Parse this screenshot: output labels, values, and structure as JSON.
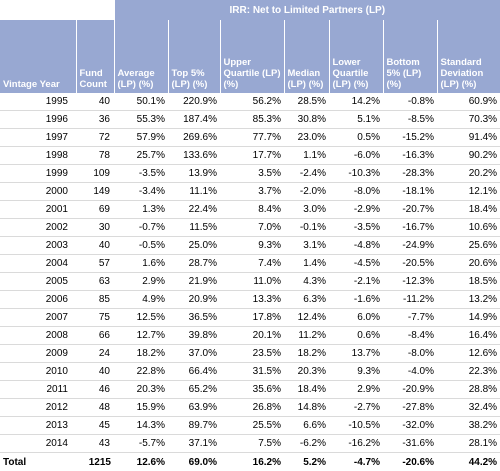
{
  "group_title": "IRR: Net to Limited Partners (LP)",
  "headers": {
    "vintage_year": "Vintage Year",
    "fund_count": "Fund Count",
    "average": "Average (LP) (%)",
    "top5": "Top 5% (LP) (%)",
    "upper_quartile": "Upper Quartile (LP) (%)",
    "median": "Median (LP) (%)",
    "lower_quartile": "Lower Quartile (LP) (%)",
    "bottom5": "Bottom 5% (LP) (%)",
    "std_dev": "Standard Deviation (LP) (%)"
  },
  "rows": [
    [
      "1995",
      "40",
      "50.1%",
      "220.9%",
      "56.2%",
      "28.5%",
      "14.2%",
      "-0.8%",
      "60.9%"
    ],
    [
      "1996",
      "36",
      "55.3%",
      "187.4%",
      "85.3%",
      "30.8%",
      "5.1%",
      "-8.5%",
      "70.3%"
    ],
    [
      "1997",
      "72",
      "57.9%",
      "269.6%",
      "77.7%",
      "23.0%",
      "0.5%",
      "-15.2%",
      "91.4%"
    ],
    [
      "1998",
      "78",
      "25.7%",
      "133.6%",
      "17.7%",
      "1.1%",
      "-6.0%",
      "-16.3%",
      "90.2%"
    ],
    [
      "1999",
      "109",
      "-3.5%",
      "13.9%",
      "3.5%",
      "-2.4%",
      "-10.3%",
      "-28.3%",
      "20.2%"
    ],
    [
      "2000",
      "149",
      "-3.4%",
      "11.1%",
      "3.7%",
      "-2.0%",
      "-8.0%",
      "-18.1%",
      "12.1%"
    ],
    [
      "2001",
      "69",
      "1.3%",
      "22.4%",
      "8.4%",
      "3.0%",
      "-2.9%",
      "-20.7%",
      "18.4%"
    ],
    [
      "2002",
      "30",
      "-0.7%",
      "11.5%",
      "7.0%",
      "-0.1%",
      "-3.5%",
      "-16.7%",
      "10.6%"
    ],
    [
      "2003",
      "40",
      "-0.5%",
      "25.0%",
      "9.3%",
      "3.1%",
      "-4.8%",
      "-24.9%",
      "25.6%"
    ],
    [
      "2004",
      "57",
      "1.6%",
      "28.7%",
      "7.4%",
      "1.4%",
      "-4.5%",
      "-20.5%",
      "20.6%"
    ],
    [
      "2005",
      "63",
      "2.9%",
      "21.9%",
      "11.0%",
      "4.3%",
      "-2.1%",
      "-12.3%",
      "18.5%"
    ],
    [
      "2006",
      "85",
      "4.9%",
      "20.9%",
      "13.3%",
      "6.3%",
      "-1.6%",
      "-11.2%",
      "13.2%"
    ],
    [
      "2007",
      "75",
      "12.5%",
      "36.5%",
      "17.8%",
      "12.4%",
      "6.0%",
      "-7.7%",
      "14.9%"
    ],
    [
      "2008",
      "66",
      "12.7%",
      "39.8%",
      "20.1%",
      "11.2%",
      "0.6%",
      "-8.4%",
      "16.4%"
    ],
    [
      "2009",
      "24",
      "18.2%",
      "37.0%",
      "23.5%",
      "18.2%",
      "13.7%",
      "-8.0%",
      "12.6%"
    ],
    [
      "2010",
      "40",
      "22.8%",
      "66.4%",
      "31.5%",
      "20.3%",
      "9.3%",
      "-4.0%",
      "22.3%"
    ],
    [
      "2011",
      "46",
      "20.3%",
      "65.2%",
      "35.6%",
      "18.4%",
      "2.9%",
      "-20.9%",
      "28.8%"
    ],
    [
      "2012",
      "48",
      "15.9%",
      "63.9%",
      "26.8%",
      "14.8%",
      "-2.7%",
      "-27.8%",
      "32.4%"
    ],
    [
      "2013",
      "45",
      "14.3%",
      "89.7%",
      "25.5%",
      "6.6%",
      "-10.5%",
      "-32.0%",
      "38.2%"
    ],
    [
      "2014",
      "43",
      "-5.7%",
      "37.1%",
      "7.5%",
      "-6.2%",
      "-16.2%",
      "-31.6%",
      "28.1%"
    ]
  ],
  "total": [
    "Total",
    "1215",
    "12.6%",
    "69.0%",
    "16.2%",
    "5.2%",
    "-4.7%",
    "-20.6%",
    "44.2%"
  ],
  "colors": {
    "header_bg": "#98a8d2",
    "header_text": "#ffffff",
    "row_border": "#dadada"
  }
}
